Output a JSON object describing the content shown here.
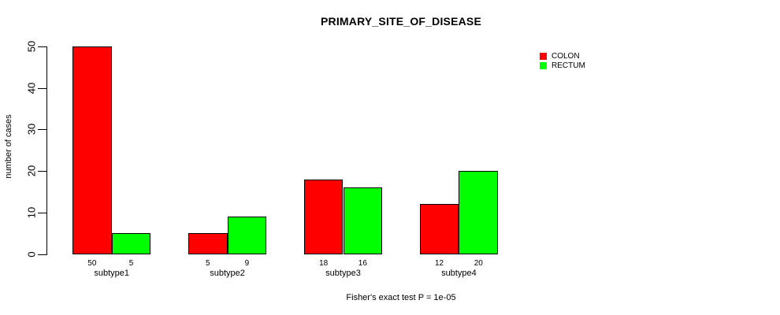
{
  "chart_data": {
    "type": "bar",
    "title": "PRIMARY_SITE_OF_DISEASE",
    "xlabel": "",
    "ylabel": "number of cases",
    "caption": "Fisher's exact test P = 1e-05",
    "categories": [
      "subtype1",
      "subtype2",
      "subtype3",
      "subtype4"
    ],
    "series": [
      {
        "name": "COLON",
        "color": "#ff0000",
        "values": [
          50,
          5,
          18,
          12
        ]
      },
      {
        "name": "RECTUM",
        "color": "#00ff00",
        "values": [
          5,
          9,
          16,
          20
        ]
      }
    ],
    "bar_value_labels": [
      [
        50,
        5
      ],
      [
        5,
        9
      ],
      [
        18,
        16
      ],
      [
        12,
        20
      ]
    ],
    "y_ticks": [
      0,
      10,
      20,
      30,
      40,
      50
    ],
    "ylim": [
      0,
      50
    ],
    "grid": false,
    "legend_position": "top-right",
    "background_color": "#ffffff",
    "text_color": "#000000"
  }
}
